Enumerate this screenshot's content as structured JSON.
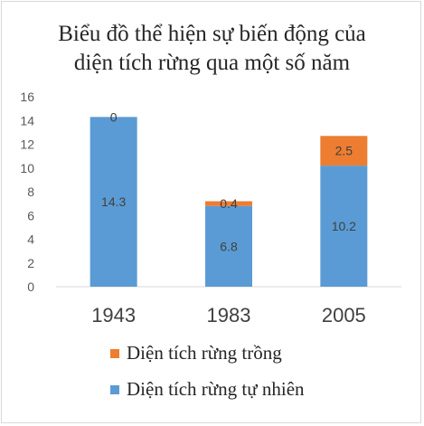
{
  "chart_data": {
    "type": "bar",
    "stacked": true,
    "title_line1": "Biểu đồ thể hiện sự biến động của",
    "title_line2": "diện tích rừng qua một số năm",
    "categories": [
      "1943",
      "1983",
      "2005"
    ],
    "series": [
      {
        "name": "Diện tích rừng tự nhiên",
        "values": [
          14.3,
          6.8,
          10.2
        ],
        "labels": [
          "14.3",
          "6.8",
          "10.2"
        ],
        "color": "#5b9bd5"
      },
      {
        "name": "Diện tích rừng trồng",
        "values": [
          0,
          0.4,
          2.5
        ],
        "labels": [
          "0",
          "0.4",
          "2.5"
        ],
        "color": "#ed7d31"
      }
    ],
    "y_ticks": [
      "0",
      "2",
      "4",
      "6",
      "8",
      "10",
      "12",
      "14",
      "16"
    ],
    "ylim": [
      0,
      16
    ],
    "grid": false,
    "legend_position": "bottom"
  }
}
